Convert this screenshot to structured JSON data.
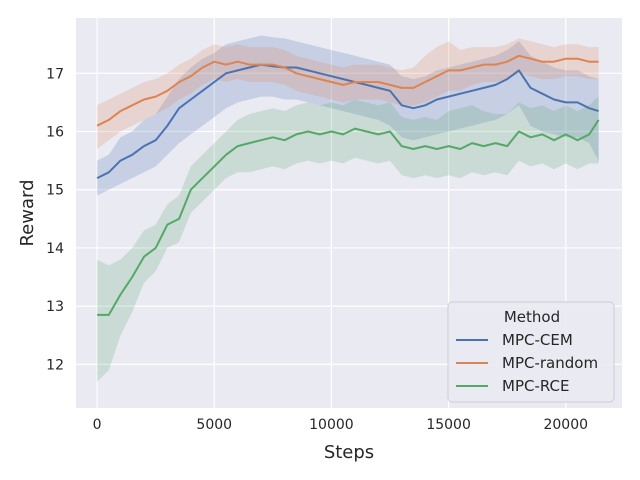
{
  "chart_data": {
    "type": "line",
    "title": "",
    "xlabel": "Steps",
    "ylabel": "Reward",
    "xlim": [
      -900,
      22400
    ],
    "ylim": [
      11.25,
      17.95
    ],
    "xticks": [
      0,
      5000,
      10000,
      15000,
      20000
    ],
    "yticks": [
      12,
      13,
      14,
      15,
      16,
      17
    ],
    "grid": true,
    "legend": {
      "title": "Method",
      "placement": "bottom-right"
    },
    "series": [
      {
        "name": "MPC-CEM",
        "color": "#4c72b0",
        "x": [
          0,
          500,
          1000,
          1500,
          2000,
          2500,
          3000,
          3500,
          4000,
          4500,
          5000,
          5500,
          6000,
          6500,
          7000,
          7500,
          8000,
          8500,
          9000,
          9500,
          10000,
          10500,
          11000,
          11500,
          12000,
          12500,
          13000,
          13500,
          14000,
          14500,
          15000,
          15500,
          16000,
          16500,
          17000,
          17500,
          18000,
          18500,
          19000,
          19500,
          20000,
          20500,
          21000,
          21400
        ],
        "values": [
          15.2,
          15.3,
          15.5,
          15.6,
          15.75,
          15.85,
          16.1,
          16.4,
          16.55,
          16.7,
          16.85,
          17.0,
          17.05,
          17.1,
          17.15,
          17.12,
          17.1,
          17.1,
          17.05,
          17.0,
          16.95,
          16.9,
          16.85,
          16.8,
          16.75,
          16.7,
          16.45,
          16.4,
          16.45,
          16.55,
          16.6,
          16.65,
          16.7,
          16.75,
          16.8,
          16.9,
          17.05,
          16.75,
          16.65,
          16.55,
          16.5,
          16.5,
          16.4,
          16.35
        ],
        "lower": [
          14.9,
          15.0,
          15.1,
          15.2,
          15.3,
          15.4,
          15.6,
          15.8,
          15.95,
          16.1,
          16.25,
          16.4,
          16.5,
          16.55,
          16.6,
          16.6,
          16.55,
          16.55,
          16.5,
          16.45,
          16.4,
          16.35,
          16.3,
          16.25,
          16.2,
          16.1,
          15.9,
          15.85,
          15.9,
          15.95,
          16.0,
          16.05,
          16.1,
          16.15,
          16.2,
          16.3,
          16.45,
          16.1,
          16.0,
          15.95,
          15.9,
          15.9,
          15.8,
          15.5
        ],
        "upper": [
          15.5,
          15.6,
          15.9,
          16.0,
          16.2,
          16.3,
          16.6,
          16.9,
          17.1,
          17.25,
          17.35,
          17.5,
          17.55,
          17.6,
          17.65,
          17.62,
          17.6,
          17.55,
          17.5,
          17.45,
          17.4,
          17.35,
          17.3,
          17.25,
          17.2,
          17.15,
          16.95,
          16.9,
          16.95,
          17.05,
          17.1,
          17.15,
          17.2,
          17.25,
          17.3,
          17.4,
          17.55,
          17.3,
          17.2,
          17.1,
          17.05,
          17.05,
          16.95,
          16.9
        ]
      },
      {
        "name": "MPC-random",
        "color": "#dd8452",
        "x": [
          0,
          500,
          1000,
          1500,
          2000,
          2500,
          3000,
          3500,
          4000,
          4500,
          5000,
          5500,
          6000,
          6500,
          7000,
          7500,
          8000,
          8500,
          9000,
          9500,
          10000,
          10500,
          11000,
          11500,
          12000,
          12500,
          13000,
          13500,
          14000,
          14500,
          15000,
          15500,
          16000,
          16500,
          17000,
          17500,
          18000,
          18500,
          19000,
          19500,
          20000,
          20500,
          21000,
          21400
        ],
        "values": [
          16.1,
          16.2,
          16.35,
          16.45,
          16.55,
          16.6,
          16.7,
          16.85,
          16.95,
          17.1,
          17.2,
          17.15,
          17.2,
          17.15,
          17.15,
          17.15,
          17.1,
          17.0,
          16.95,
          16.9,
          16.85,
          16.8,
          16.85,
          16.85,
          16.85,
          16.8,
          16.75,
          16.75,
          16.85,
          16.95,
          17.05,
          17.05,
          17.1,
          17.15,
          17.15,
          17.2,
          17.3,
          17.25,
          17.2,
          17.2,
          17.25,
          17.25,
          17.2,
          17.2
        ],
        "lower": [
          15.7,
          15.85,
          16.0,
          16.1,
          16.2,
          16.3,
          16.4,
          16.55,
          16.65,
          16.8,
          16.9,
          16.85,
          16.9,
          16.85,
          16.85,
          16.85,
          16.8,
          16.7,
          16.65,
          16.6,
          16.55,
          16.5,
          16.55,
          16.55,
          16.55,
          16.5,
          16.45,
          16.45,
          16.5,
          16.6,
          16.7,
          16.7,
          16.8,
          16.85,
          16.85,
          16.9,
          17.0,
          16.95,
          16.9,
          16.9,
          16.95,
          16.95,
          16.9,
          16.9
        ],
        "upper": [
          16.45,
          16.55,
          16.65,
          16.75,
          16.85,
          16.9,
          17.0,
          17.15,
          17.25,
          17.4,
          17.5,
          17.45,
          17.5,
          17.45,
          17.45,
          17.45,
          17.4,
          17.3,
          17.25,
          17.2,
          17.15,
          17.1,
          17.15,
          17.15,
          17.15,
          17.1,
          17.05,
          17.1,
          17.3,
          17.45,
          17.55,
          17.4,
          17.45,
          17.45,
          17.45,
          17.5,
          17.6,
          17.55,
          17.5,
          17.45,
          17.5,
          17.5,
          17.45,
          17.45
        ]
      },
      {
        "name": "MPC-RCE",
        "color": "#55a868",
        "x": [
          0,
          500,
          1000,
          1500,
          2000,
          2500,
          3000,
          3500,
          4000,
          4500,
          5000,
          5500,
          6000,
          6500,
          7000,
          7500,
          8000,
          8500,
          9000,
          9500,
          10000,
          10500,
          11000,
          11500,
          12000,
          12500,
          13000,
          13500,
          14000,
          14500,
          15000,
          15500,
          16000,
          16500,
          17000,
          17500,
          18000,
          18500,
          19000,
          19500,
          20000,
          20500,
          21000,
          21400
        ],
        "values": [
          12.85,
          12.85,
          13.2,
          13.5,
          13.85,
          14.0,
          14.4,
          14.5,
          15.0,
          15.2,
          15.4,
          15.6,
          15.75,
          15.8,
          15.85,
          15.9,
          15.85,
          15.95,
          16.0,
          15.95,
          16.0,
          15.95,
          16.05,
          16.0,
          15.95,
          16.0,
          15.75,
          15.7,
          15.75,
          15.7,
          15.75,
          15.7,
          15.8,
          15.75,
          15.8,
          15.75,
          16.0,
          15.9,
          15.95,
          15.85,
          15.95,
          15.85,
          15.95,
          16.2
        ],
        "lower": [
          11.7,
          11.9,
          12.5,
          12.9,
          13.4,
          13.6,
          14.0,
          14.1,
          14.6,
          14.8,
          15.0,
          15.2,
          15.3,
          15.3,
          15.35,
          15.4,
          15.35,
          15.45,
          15.5,
          15.45,
          15.5,
          15.45,
          15.55,
          15.5,
          15.45,
          15.5,
          15.25,
          15.2,
          15.25,
          15.2,
          15.25,
          15.2,
          15.3,
          15.25,
          15.3,
          15.25,
          15.5,
          15.4,
          15.45,
          15.35,
          15.45,
          15.35,
          15.45,
          15.45
        ],
        "upper": [
          13.8,
          13.7,
          13.8,
          14.0,
          14.3,
          14.4,
          14.75,
          14.9,
          15.4,
          15.6,
          15.8,
          16.0,
          16.2,
          16.3,
          16.35,
          16.4,
          16.35,
          16.45,
          16.5,
          16.45,
          16.5,
          16.45,
          16.55,
          16.5,
          16.45,
          16.5,
          16.25,
          16.2,
          16.25,
          16.2,
          16.35,
          16.4,
          16.45,
          16.35,
          16.3,
          16.3,
          16.5,
          16.4,
          16.45,
          16.35,
          16.45,
          16.35,
          16.45,
          16.6
        ]
      }
    ]
  }
}
